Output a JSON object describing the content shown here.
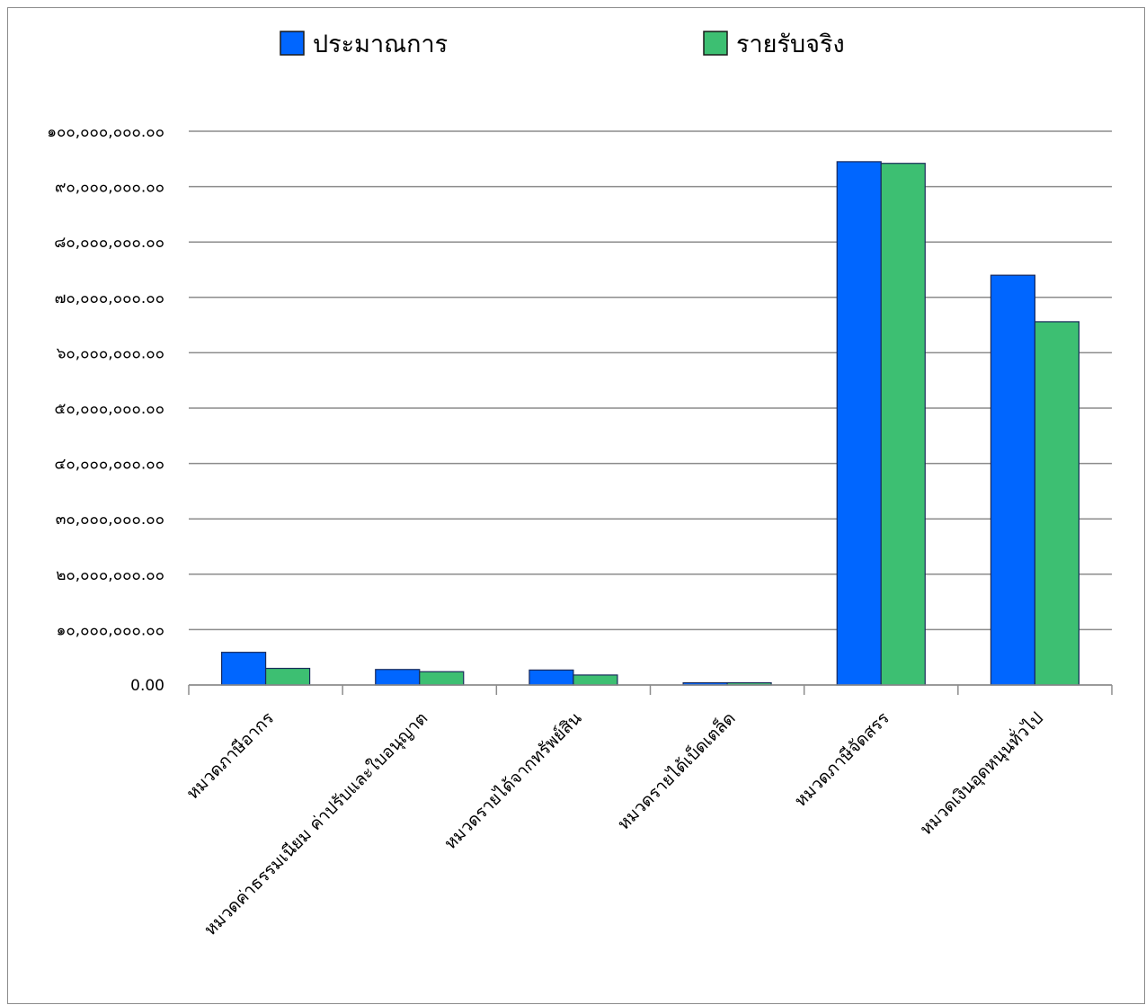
{
  "chart_data": {
    "type": "bar",
    "title": "",
    "xlabel": "",
    "ylabel": "",
    "ylim": [
      0,
      100000000
    ],
    "grid": true,
    "legend_position": "top",
    "y_ticks": [
      0,
      10000000,
      20000000,
      30000000,
      40000000,
      50000000,
      60000000,
      70000000,
      80000000,
      90000000,
      100000000
    ],
    "y_tick_labels": [
      "0.00",
      "๑๐,๐๐๐,๐๐๐.๐๐",
      "๒๐,๐๐๐,๐๐๐.๐๐",
      "๓๐,๐๐๐,๐๐๐.๐๐",
      "๔๐,๐๐๐,๐๐๐.๐๐",
      "๕๐,๐๐๐,๐๐๐.๐๐",
      "๖๐,๐๐๐,๐๐๐.๐๐",
      "๗๐,๐๐๐,๐๐๐.๐๐",
      "๘๐,๐๐๐,๐๐๐.๐๐",
      "๙๐,๐๐๐,๐๐๐.๐๐",
      "๑๐๐,๐๐๐,๐๐๐.๐๐"
    ],
    "categories": [
      "หมวดภาษีอากร",
      "หมวดค่าธรรมเนียม ค่าปรับและใบอนุญาต",
      "หมวดรายได้จากทรัพย์สิน",
      "หมวดรายได้เบ็ดเตล็ด",
      "หมวดภาษีจัดสรร",
      "หมวดเงินอุดหนุนทั่วไป"
    ],
    "series": [
      {
        "name": "ประมาณการ",
        "color": "#0066ff",
        "values": [
          5900000,
          2800000,
          2700000,
          400000,
          94500000,
          74000000
        ]
      },
      {
        "name": "รายรับจริง",
        "color": "#3dbf72",
        "values": [
          3000000,
          2400000,
          1800000,
          400000,
          94200000,
          65600000
        ]
      }
    ]
  }
}
